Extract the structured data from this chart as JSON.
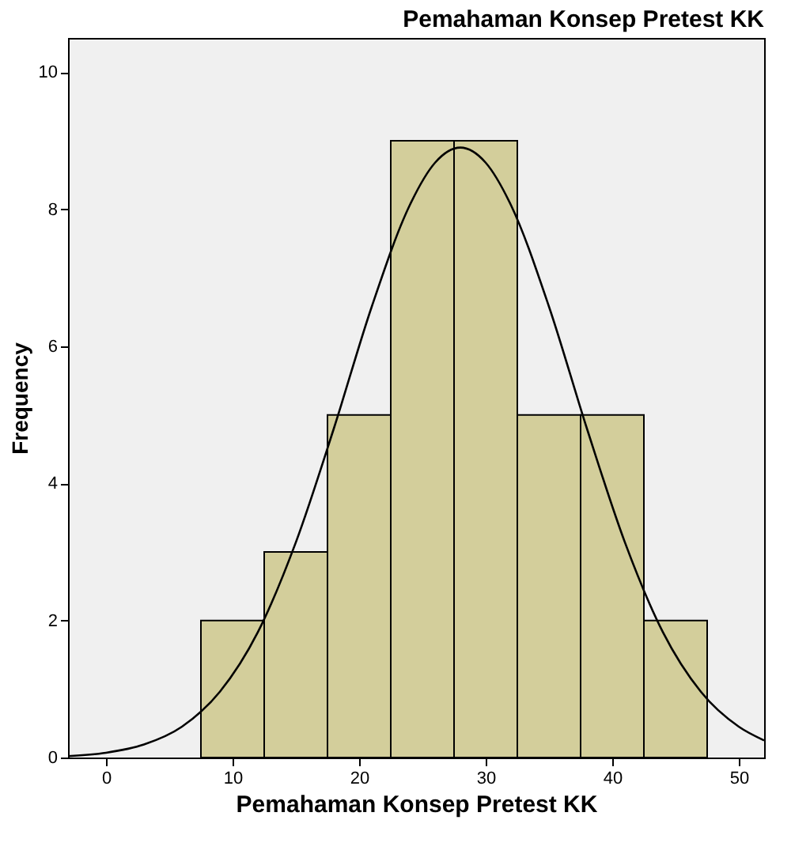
{
  "chart_data": {
    "type": "histogram",
    "title": "Pemahaman Konsep Pretest KK",
    "xlabel": "Pemahaman Konsep Pretest KK",
    "ylabel": "Frequency",
    "bins": [
      7.5,
      12.5,
      17.5,
      22.5,
      27.5,
      32.5,
      37.5,
      42.5,
      47.5
    ],
    "values": [
      2,
      3,
      5,
      9,
      9,
      5,
      5,
      2
    ],
    "color": "#d3ce9b",
    "series": [
      {
        "type": "line",
        "color": "#000000",
        "x": [
          -3,
          0,
          3,
          6,
          9,
          12,
          15,
          18,
          21,
          24,
          26,
          28,
          30,
          32,
          35,
          38,
          41,
          44,
          47,
          50,
          52
        ],
        "values": [
          0.02,
          0.07,
          0.19,
          0.45,
          0.96,
          1.83,
          3.14,
          4.8,
          6.58,
          8.06,
          8.68,
          8.9,
          8.68,
          8.06,
          6.58,
          4.8,
          3.14,
          1.83,
          0.96,
          0.45,
          0.25
        ]
      }
    ],
    "xlim": [
      -3,
      52
    ],
    "ylim": [
      0,
      10.5
    ],
    "xticks": [
      0,
      10,
      20,
      30,
      40,
      50
    ],
    "yticks": [
      0,
      2,
      4,
      6,
      8,
      10
    ],
    "grid": false
  }
}
